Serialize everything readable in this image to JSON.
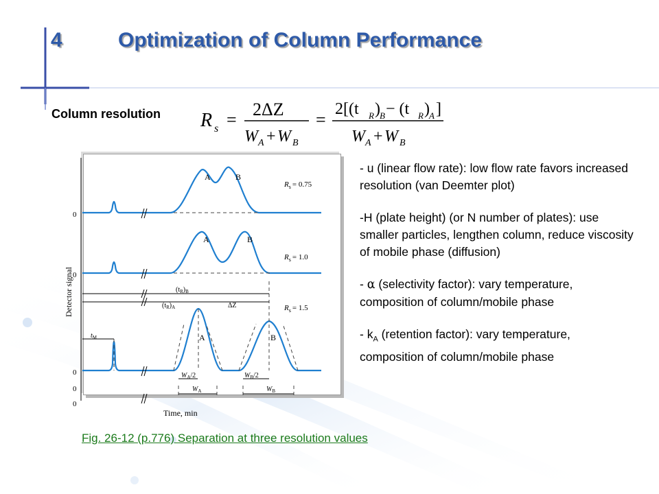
{
  "slide": {
    "number": "4",
    "title": "Optimization of Column Performance",
    "subtitle": "Column resolution"
  },
  "formula": {
    "lhs": "R",
    "lhs_sub": "s",
    "frac1_num": "2ΔZ",
    "frac2_num": "2[(t",
    "frac2_num_mid": ")",
    "frac2_num_minus": " − (t",
    "frac2_num_end": ")",
    "sub_R": "R",
    "sub_B": "B",
    "sub_A": "A",
    "den_W": "W",
    "den_plus": "+",
    "den_A": "A",
    "den_B": "B",
    "close_bracket": "]"
  },
  "figure": {
    "y_axis_label": "Detector signal",
    "x_axis_label": "Time, min",
    "zero_label": "0",
    "peak_a": "A",
    "peak_b": "B",
    "rs_symbol": "R",
    "rs_sub": "s",
    "rs_values": [
      "= 0.75",
      "= 1.0",
      "= 1.5"
    ],
    "tr_b_label": "(t",
    "tr_sub": "R",
    "tr_b_end": ")",
    "b_sub": "B",
    "a_sub": "A",
    "delta_z": "ΔZ",
    "t_m": "t",
    "t_m_sub": "M",
    "w_a_half": "W",
    "w_b_half": "W",
    "half_suffix": "/2"
  },
  "notes": [
    {
      "pre": "- u (linear flow rate): low flow rate favors increased resolution (van Deemter plot)"
    },
    {
      "pre": "-H (plate height) (or N number of plates): use smaller particles, lengthen column, reduce viscosity of mobile phase (diffusion)"
    },
    {
      "pre": "- ",
      "symbol": "α",
      "post": " (selectivity factor): vary temperature, composition of column/mobile phase"
    },
    {
      "pre": "- k",
      "sub": "A",
      "post": " (retention factor): vary temperature, composition of column/mobile phase"
    }
  ],
  "caption": "Fig. 26-12 (p.776)  Separation at three resolution values",
  "colors": {
    "title": "#2e5aa8",
    "accent_bar": "#2f3f9a",
    "trace": "#1f7fd0",
    "caption": "#1a7a1a"
  }
}
